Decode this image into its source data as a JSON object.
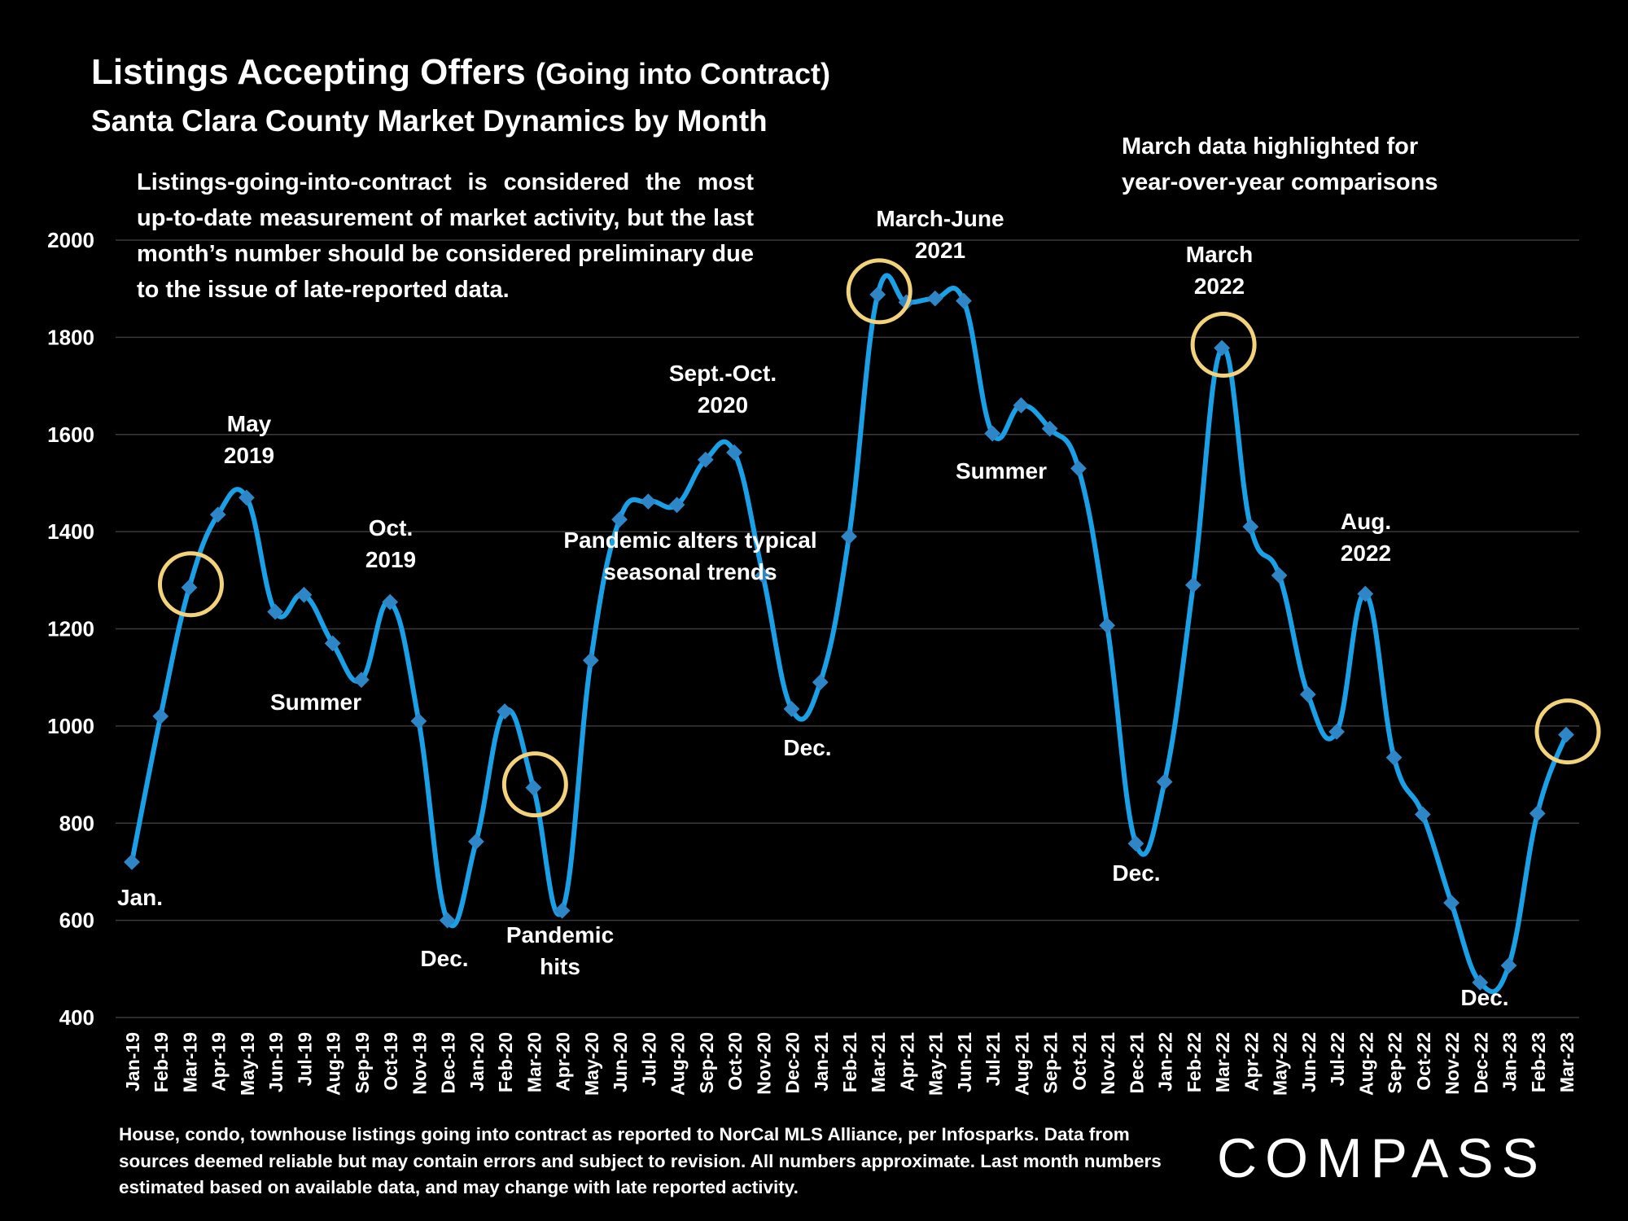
{
  "header": {
    "title_main": "Listings Accepting Offers",
    "title_paren": "(Going into Contract)",
    "subtitle": "Santa Clara County Market Dynamics by Month"
  },
  "note": "Listings-going-into-contract is considered the most up-to-date measurement of market activity, but the last month’s number should be considered preliminary due to the issue of late-reported data.",
  "march_note": "March data highlighted for\nyear-over-year comparisons",
  "footnote": "House, condo, townhouse listings going into contract as reported to NorCal MLS Alliance, per Infosparks. Data from sources deemed reliable but may contain errors and subject to revision. All numbers approximate. Last month numbers estimated based on available data, and may change with late reported activity.",
  "logo": "COMPASS",
  "colors": {
    "line": "#1aa0e6",
    "marker": "#2f86c6",
    "highlight": "#f2d27a",
    "grid": "#3a3a3a",
    "background": "#000000",
    "text": "#ffffff"
  },
  "chart_data": {
    "type": "line",
    "title": "Listings Accepting Offers (Going into Contract)",
    "subtitle": "Santa Clara County Market Dynamics by Month",
    "ylim": [
      400,
      2000
    ],
    "yticks": [
      400,
      600,
      800,
      1000,
      1200,
      1400,
      1600,
      1800,
      2000
    ],
    "grid": true,
    "categories": [
      "Jan-19",
      "Feb-19",
      "Mar-19",
      "Apr-19",
      "May-19",
      "Jun-19",
      "Jul-19",
      "Aug-19",
      "Sep-19",
      "Oct-19",
      "Nov-19",
      "Dec-19",
      "Jan-20",
      "Feb-20",
      "Mar-20",
      "Apr-20",
      "May-20",
      "Jun-20",
      "Jul-20",
      "Aug-20",
      "Sep-20",
      "Oct-20",
      "Nov-20",
      "Dec-20",
      "Jan-21",
      "Feb-21",
      "Mar-21",
      "Apr-21",
      "May-21",
      "Jun-21",
      "Jul-21",
      "Aug-21",
      "Sep-21",
      "Oct-21",
      "Nov-21",
      "Dec-21",
      "Jan-22",
      "Feb-22",
      "Mar-22",
      "Apr-22",
      "May-22",
      "Jun-22",
      "Jul-22",
      "Aug-22",
      "Sep-22",
      "Oct-22",
      "Nov-22",
      "Dec-22",
      "Jan-23",
      "Feb-23",
      "Mar-23"
    ],
    "values": [
      720,
      1020,
      1285,
      1435,
      1470,
      1235,
      1270,
      1170,
      1095,
      1255,
      1010,
      600,
      762,
      1030,
      873,
      620,
      1135,
      1425,
      1462,
      1455,
      1548,
      1563,
      1310,
      1035,
      1090,
      1390,
      1888,
      1872,
      1880,
      1875,
      1602,
      1660,
      1612,
      1530,
      1207,
      758,
      885,
      1290,
      1778,
      1410,
      1310,
      1065,
      988,
      1272,
      935,
      818,
      636,
      472,
      507,
      820,
      982
    ],
    "highlighted": [
      "Mar-19",
      "Mar-20",
      "Mar-21",
      "Mar-22",
      "Mar-23"
    ],
    "annotations": [
      {
        "text": "Jan.",
        "at": "Jan-19"
      },
      {
        "text": "May\n2019",
        "at": "May-19"
      },
      {
        "text": "Summer",
        "at": "Jul-19"
      },
      {
        "text": "Oct.\n2019",
        "at": "Oct-19"
      },
      {
        "text": "Dec.",
        "at": "Dec-19"
      },
      {
        "text": "Pandemic\nhits",
        "at": "Apr-20"
      },
      {
        "text": "Sept.-Oct.\n2020",
        "at": "Sep-20"
      },
      {
        "text": "Pandemic alters typical\nseasonal trends",
        "at": "Aug-20"
      },
      {
        "text": "Dec.",
        "at": "Dec-20"
      },
      {
        "text": "March-June\n2021",
        "at": "Apr-21"
      },
      {
        "text": "Summer",
        "at": "Jul-21"
      },
      {
        "text": "Dec.",
        "at": "Dec-21"
      },
      {
        "text": "March\n2022",
        "at": "Mar-22"
      },
      {
        "text": "Aug.\n2022",
        "at": "Aug-22"
      },
      {
        "text": "Dec.",
        "at": "Dec-22"
      }
    ]
  }
}
